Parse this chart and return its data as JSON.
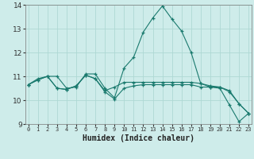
{
  "xlabel": "Humidex (Indice chaleur)",
  "background_color": "#ceecea",
  "grid_color": "#aed8d4",
  "line_color": "#1a7a6e",
  "x_values": [
    0,
    1,
    2,
    3,
    4,
    5,
    6,
    7,
    8,
    9,
    10,
    11,
    12,
    13,
    14,
    15,
    16,
    17,
    18,
    19,
    20,
    21,
    22,
    23
  ],
  "series": [
    [
      10.65,
      10.9,
      11.0,
      11.0,
      10.5,
      10.55,
      11.1,
      11.1,
      10.5,
      10.1,
      11.35,
      11.8,
      12.85,
      13.45,
      13.95,
      13.4,
      12.9,
      12.0,
      10.7,
      10.55,
      10.5,
      9.8,
      9.1,
      9.45
    ],
    [
      10.65,
      10.85,
      11.0,
      10.5,
      10.45,
      10.6,
      11.05,
      10.9,
      10.4,
      10.55,
      10.75,
      10.75,
      10.75,
      10.75,
      10.75,
      10.75,
      10.75,
      10.75,
      10.7,
      10.6,
      10.55,
      10.4,
      9.85,
      9.45
    ],
    [
      10.65,
      10.85,
      11.0,
      10.5,
      10.45,
      10.6,
      11.05,
      10.9,
      10.35,
      10.05,
      10.5,
      10.6,
      10.65,
      10.65,
      10.65,
      10.65,
      10.65,
      10.65,
      10.55,
      10.55,
      10.55,
      10.35,
      9.85,
      9.45
    ]
  ],
  "ylim": [
    9,
    14
  ],
  "xlim_min": -0.3,
  "xlim_max": 23.3,
  "yticks": [
    9,
    10,
    11,
    12,
    13,
    14
  ],
  "xtick_labels": [
    "0",
    "1",
    "2",
    "3",
    "4",
    "5",
    "6",
    "7",
    "8",
    "9",
    "10",
    "11",
    "12",
    "13",
    "14",
    "15",
    "16",
    "17",
    "18",
    "19",
    "20",
    "21",
    "22",
    "23"
  ]
}
